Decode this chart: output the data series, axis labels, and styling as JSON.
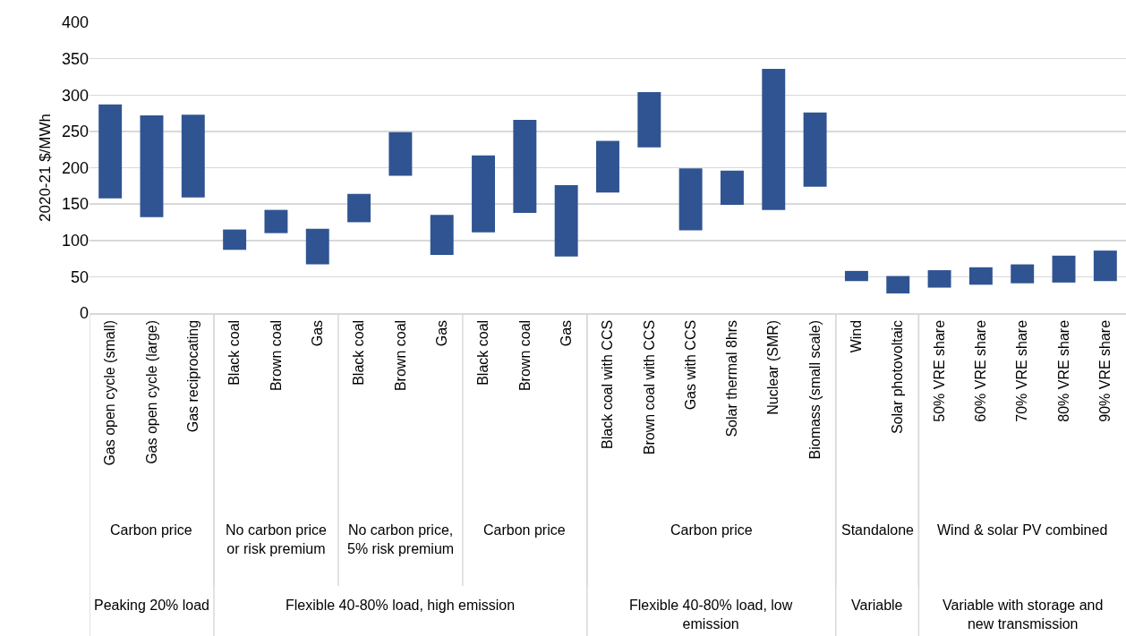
{
  "chart_data": {
    "type": "bar",
    "ylabel": "2020-21 $/MWh",
    "categories": [
      "Gas open cycle (small)",
      "Gas open cycle (large)",
      "Gas reciprocating",
      "Black coal",
      "Brown coal",
      "Gas",
      "Black coal",
      "Brown coal",
      "Gas",
      "Black coal",
      "Brown coal",
      "Gas",
      "Black coal with CCS",
      "Brown coal with CCS",
      "Gas with CCS",
      "Solar thermal 8hrs",
      "Nuclear (SMR)",
      "Biomass (small scale)",
      "Wind",
      "Solar photovoltaic",
      "50% VRE share",
      "60% VRE share",
      "70% VRE share",
      "80% VRE share",
      "90% VRE share"
    ],
    "base": [
      158,
      132,
      159,
      87,
      110,
      67,
      125,
      189,
      80,
      111,
      138,
      78,
      166,
      228,
      114,
      149,
      142,
      174,
      44,
      27,
      35,
      39,
      41,
      42,
      44
    ],
    "values": [
      129,
      140,
      114,
      28,
      32,
      49,
      39,
      60,
      55,
      106,
      128,
      98,
      71,
      76,
      85,
      47,
      194,
      102,
      14,
      24,
      24,
      24,
      26,
      37,
      42
    ],
    "color": "#2f5491",
    "ylim": [
      0,
      400
    ],
    "yticks": [
      0,
      50,
      100,
      150,
      200,
      250,
      300,
      350,
      400
    ],
    "grid": "y",
    "annotations": [
      "Carbon price",
      "No carbon price or risk premium",
      "No carbon price, 5% risk premium",
      "Carbon price",
      "Carbon price",
      "Standalone",
      "Wind & solar PV combined",
      "Peaking 20% load",
      "Flexible 40-80% load, high emission",
      "Flexible 40-80% load, low emission",
      "Variable",
      "Variable with storage and new transmission"
    ]
  }
}
